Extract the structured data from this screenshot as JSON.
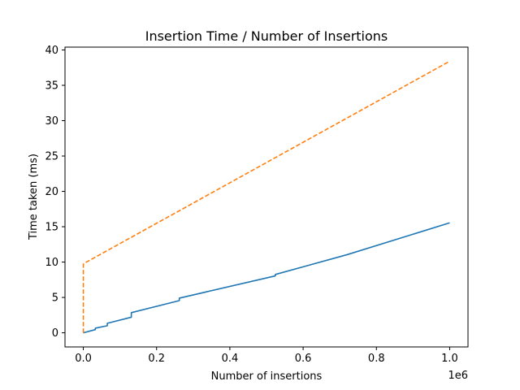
{
  "chart_data": {
    "type": "line",
    "title": "Insertion Time / Number of Insertions",
    "xlabel": "Number of insertions",
    "ylabel": "Time taken (ms)",
    "x_offset_label": "1e6",
    "xlim": [
      -0.05,
      1.05
    ],
    "ylim": [
      -2,
      40.4
    ],
    "xticks": [
      0.0,
      0.2,
      0.4,
      0.6,
      0.8,
      1.0
    ],
    "xtick_labels": [
      "0.0",
      "0.2",
      "0.4",
      "0.6",
      "0.8",
      "1.0"
    ],
    "yticks": [
      0,
      5,
      10,
      15,
      20,
      25,
      30,
      35,
      40
    ],
    "ytick_labels": [
      "0",
      "5",
      "10",
      "15",
      "20",
      "25",
      "30",
      "35",
      "40"
    ],
    "grid": false,
    "series": [
      {
        "color": "#1f77b4",
        "linestyle": "solid",
        "points": [
          [
            0.0,
            0.0
          ],
          [
            0.0327,
            0.45
          ],
          [
            0.0328,
            0.65
          ],
          [
            0.0655,
            1.0
          ],
          [
            0.0656,
            1.35
          ],
          [
            0.131,
            2.2
          ],
          [
            0.1311,
            2.85
          ],
          [
            0.262,
            4.55
          ],
          [
            0.2621,
            4.9
          ],
          [
            0.524,
            8.05
          ],
          [
            0.5241,
            8.25
          ],
          [
            0.72,
            11.05
          ],
          [
            1.0,
            15.55
          ]
        ]
      },
      {
        "color": "#ff7f0e",
        "linestyle": "dashed",
        "points": [
          [
            0.0,
            0.0
          ],
          [
            0.0,
            9.7
          ],
          [
            0.005,
            9.9
          ],
          [
            1.0,
            38.4
          ]
        ]
      }
    ]
  }
}
